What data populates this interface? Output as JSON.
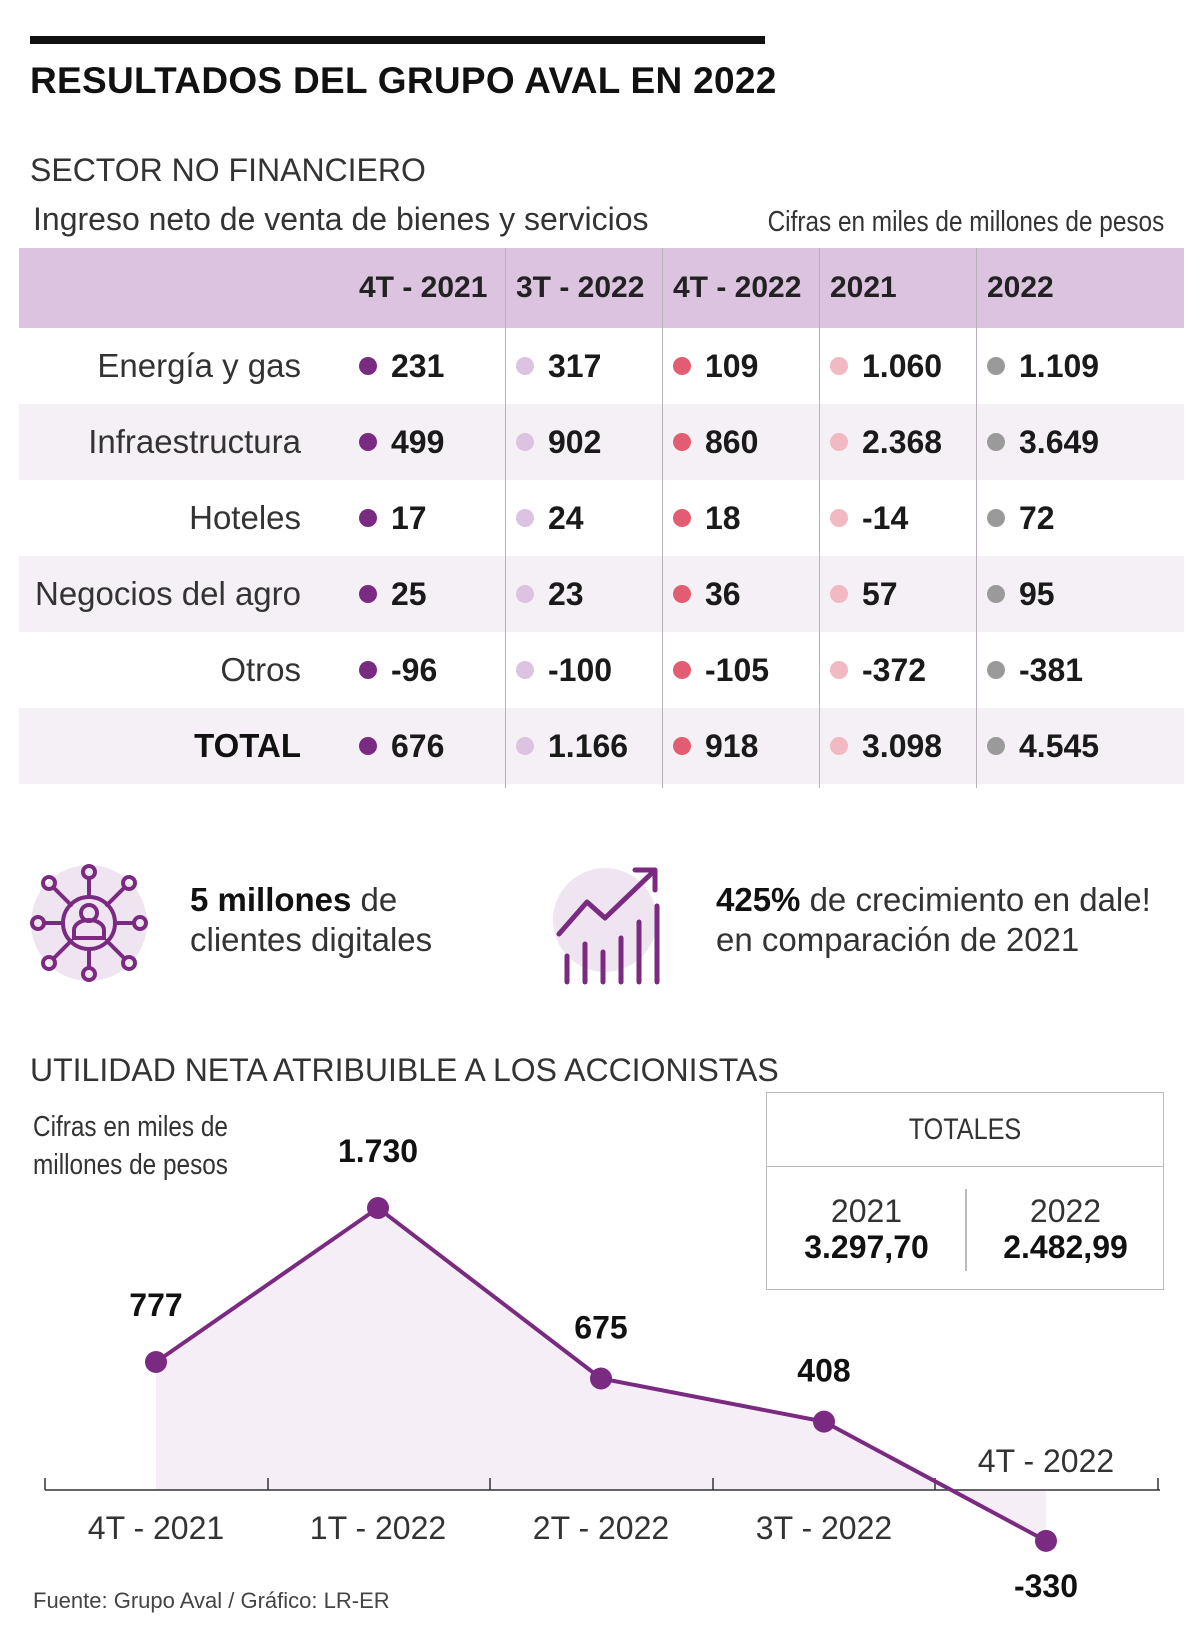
{
  "title": "RESULTADOS DEL GRUPO AVAL EN 2022",
  "section_title": "SECTOR NO FINANCIERO",
  "table": {
    "subtitle": "Ingreso neto de venta de bienes y servicios",
    "units": "Cifras en miles de millones de pesos",
    "columns": [
      "4T - 2021",
      "3T - 2022",
      "4T - 2022",
      "2021",
      "2022"
    ],
    "column_colors": [
      "#7b2a82",
      "#dcc3e1",
      "#e25c72",
      "#f1b9c1",
      "#9a9a9a"
    ],
    "rows": [
      {
        "label": "Energía y gas",
        "values": [
          "231",
          "317",
          "109",
          "1.060",
          "1.109"
        ]
      },
      {
        "label": "Infraestructura",
        "values": [
          "499",
          "902",
          "860",
          "2.368",
          "3.649"
        ]
      },
      {
        "label": "Hoteles",
        "values": [
          "17",
          "24",
          "18",
          "-14",
          "72"
        ]
      },
      {
        "label": "Negocios del agro",
        "values": [
          "25",
          "23",
          "36",
          "57",
          "95"
        ]
      },
      {
        "label": "Otros",
        "values": [
          "-96",
          "-100",
          "-105",
          "-372",
          "-381"
        ]
      },
      {
        "label": "TOTAL",
        "values": [
          "676",
          "1.166",
          "918",
          "3.098",
          "4.545"
        ]
      }
    ]
  },
  "stats": [
    {
      "icon": "network-user-icon",
      "bold": "5 millones",
      "rest_line1": " de",
      "line2": "clientes digitales"
    },
    {
      "icon": "growth-chart-icon",
      "bold": "425%",
      "rest_line1": " de crecimiento en dale!",
      "line2": "en comparación de 2021"
    }
  ],
  "chart_title": "UTILIDAD NETA ATRIBUIBLE A LOS ACCIONISTAS",
  "chart_units_line1": "Cifras en miles de",
  "chart_units_line2": "millones de pesos",
  "totals": {
    "header": "TOTALES",
    "items": [
      {
        "year": "2021",
        "value": "3.297,70"
      },
      {
        "year": "2022",
        "value": "2.482,99"
      }
    ]
  },
  "chart_data": {
    "type": "line",
    "title": "UTILIDAD NETA ATRIBUIBLE A LOS ACCIONISTAS",
    "categories": [
      "4T - 2021",
      "1T - 2022",
      "2T - 2022",
      "3T - 2022",
      "4T - 2022"
    ],
    "values": [
      777,
      1730,
      675,
      408,
      -330
    ],
    "value_labels": [
      "777",
      "1.730",
      "675",
      "408",
      "-330"
    ],
    "color": "#7b2a82",
    "area_fill": "#f5eef6",
    "ylim": [
      -330,
      1730
    ]
  },
  "source": "Fuente: Grupo Aval / Gráfico: LR-ER"
}
